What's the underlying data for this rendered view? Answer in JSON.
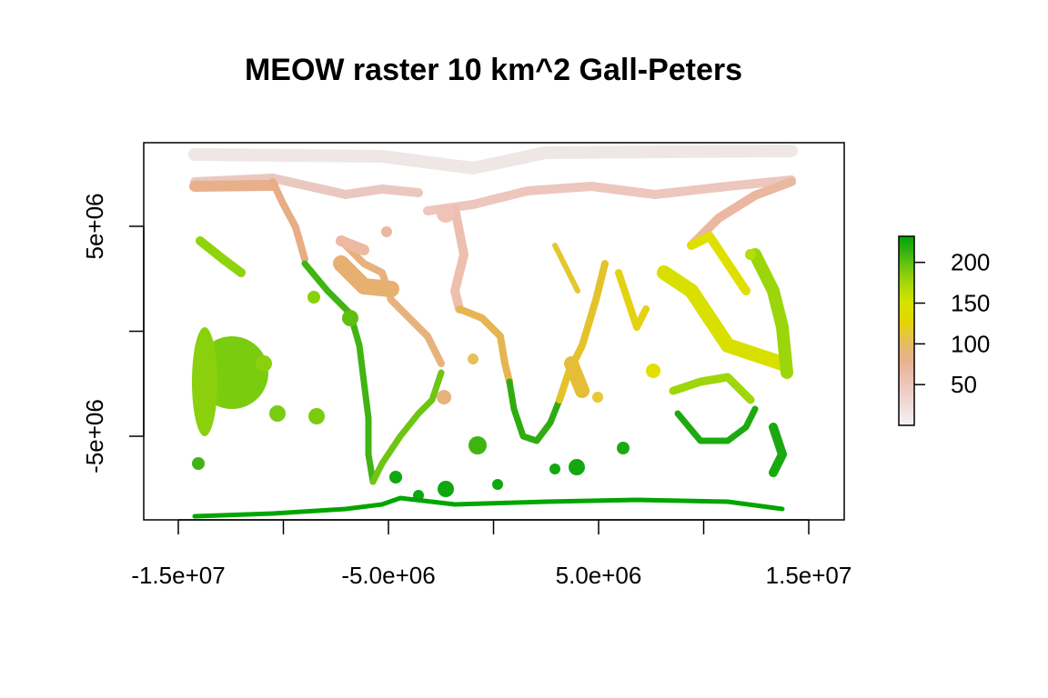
{
  "title": "MEOW raster 10 km^2 Gall-Peters",
  "x_axis": {
    "range": [
      -15500000,
      15500000
    ],
    "ticks": [
      {
        "value": -15000000,
        "label": "-1.5e+07"
      },
      {
        "value": -10000000,
        "label": ""
      },
      {
        "value": -5000000,
        "label": "-5.0e+06"
      },
      {
        "value": 0,
        "label": ""
      },
      {
        "value": 5000000,
        "label": "5.0e+06"
      },
      {
        "value": 10000000,
        "label": ""
      },
      {
        "value": 15000000,
        "label": "1.5e+07"
      }
    ]
  },
  "y_axis": {
    "range": [
      -9000000,
      9000000
    ],
    "ticks": [
      {
        "value": 5000000,
        "label": "5e+06"
      },
      {
        "value": 0,
        "label": ""
      },
      {
        "value": -5000000,
        "label": "-5e+06"
      }
    ]
  },
  "legend": {
    "position": "right",
    "range": [
      0,
      232
    ],
    "ticks": [
      {
        "value": 200,
        "label": "200"
      },
      {
        "value": 150,
        "label": "150"
      },
      {
        "value": 100,
        "label": "100"
      },
      {
        "value": 50,
        "label": "50"
      }
    ],
    "colors": [
      "#f2f2f2",
      "#eec9c0",
      "#e8b08a",
      "#e6bf58",
      "#e3d600",
      "#d4e300",
      "#a6d80a",
      "#68c412",
      "#2eaf10",
      "#00a600"
    ]
  }
}
